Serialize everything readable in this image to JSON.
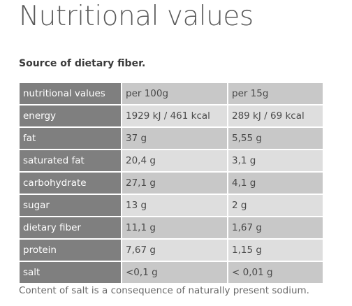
{
  "title": "Nutritional values",
  "subtitle": "Source of dietary fiber.",
  "table": {
    "headers": [
      "nutritional values",
      "per 100g",
      "per 15g"
    ],
    "rows": [
      {
        "label": "energy",
        "per100": "1929 kJ / 461 kcal",
        "per15": "289 kJ / 69 kcal"
      },
      {
        "label": "fat",
        "per100": "37 g",
        "per15": "5,55 g"
      },
      {
        "label": "saturated fat",
        "per100": "20,4 g",
        "per15": "3,1 g"
      },
      {
        "label": "carbohydrate",
        "per100": "27,1 g",
        "per15": "4,1 g"
      },
      {
        "label": "sugar",
        "per100": "13 g",
        "per15": "2 g"
      },
      {
        "label": "dietary fiber",
        "per100": "11,1 g",
        "per15": "1,67 g"
      },
      {
        "label": "protein",
        "per100": "7,67 g",
        "per15": "1,15 g"
      },
      {
        "label": "salt",
        "per100": "<0,1 g",
        "per15": "< 0,01 g"
      }
    ]
  },
  "footnote": "Content of salt is a consequence of naturally present sodium.",
  "colors": {
    "label_bg": "#7f7f7f",
    "value_bg_odd": "#c8c8c8",
    "value_bg_even": "#dedede",
    "title_text": "#5a5a5a"
  }
}
